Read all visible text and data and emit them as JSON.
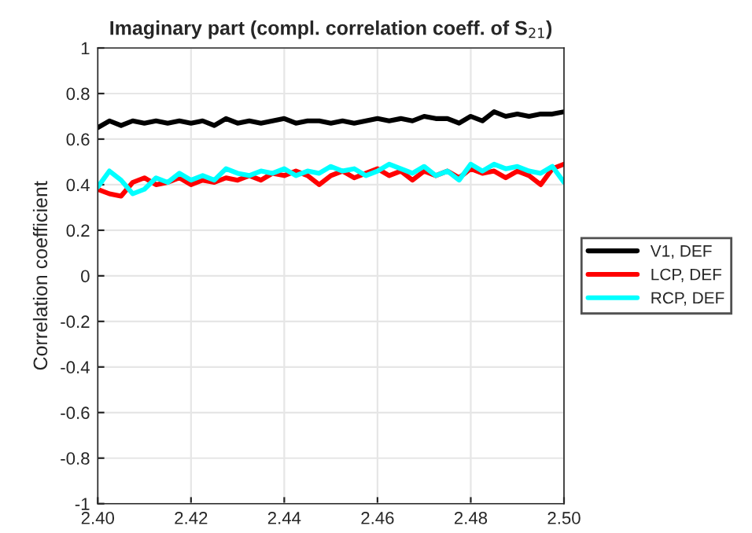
{
  "chart_data": {
    "type": "line",
    "title": "Imaginary part (compl. correlation coeff. of S$_{21}$)",
    "ylabel": "Correlation coefficient",
    "x": [
      2.4,
      2.4025,
      2.405,
      2.4075,
      2.41,
      2.4125,
      2.415,
      2.4175,
      2.42,
      2.4225,
      2.425,
      2.4275,
      2.43,
      2.4325,
      2.435,
      2.4375,
      2.44,
      2.4425,
      2.445,
      2.4475,
      2.45,
      2.4525,
      2.455,
      2.4575,
      2.46,
      2.4625,
      2.465,
      2.4675,
      2.47,
      2.4725,
      2.475,
      2.4775,
      2.48,
      2.4825,
      2.485,
      2.4875,
      2.49,
      2.4925,
      2.495,
      2.4975,
      2.5
    ],
    "series": [
      {
        "name": "V1, DEF",
        "color": "#000000",
        "values": [
          0.65,
          0.68,
          0.66,
          0.68,
          0.67,
          0.68,
          0.67,
          0.68,
          0.67,
          0.68,
          0.66,
          0.69,
          0.67,
          0.68,
          0.67,
          0.68,
          0.69,
          0.67,
          0.68,
          0.68,
          0.67,
          0.68,
          0.67,
          0.68,
          0.69,
          0.68,
          0.69,
          0.68,
          0.7,
          0.69,
          0.69,
          0.67,
          0.7,
          0.68,
          0.72,
          0.7,
          0.71,
          0.7,
          0.71,
          0.71,
          0.72
        ]
      },
      {
        "name": "LCP, DEF",
        "color": "#ff0000",
        "values": [
          0.38,
          0.36,
          0.35,
          0.41,
          0.43,
          0.4,
          0.41,
          0.43,
          0.4,
          0.42,
          0.41,
          0.43,
          0.42,
          0.44,
          0.42,
          0.45,
          0.44,
          0.46,
          0.44,
          0.4,
          0.44,
          0.46,
          0.43,
          0.45,
          0.47,
          0.44,
          0.46,
          0.42,
          0.46,
          0.44,
          0.46,
          0.43,
          0.47,
          0.45,
          0.46,
          0.43,
          0.46,
          0.44,
          0.4,
          0.47,
          0.49
        ]
      },
      {
        "name": "RCP, DEF",
        "color": "#00ffff",
        "values": [
          0.39,
          0.46,
          0.42,
          0.36,
          0.38,
          0.43,
          0.41,
          0.45,
          0.42,
          0.44,
          0.42,
          0.47,
          0.45,
          0.44,
          0.46,
          0.45,
          0.47,
          0.44,
          0.46,
          0.45,
          0.48,
          0.46,
          0.47,
          0.44,
          0.46,
          0.49,
          0.47,
          0.45,
          0.48,
          0.44,
          0.46,
          0.42,
          0.49,
          0.46,
          0.49,
          0.47,
          0.48,
          0.46,
          0.45,
          0.48,
          0.41
        ]
      }
    ],
    "xlim": [
      2.4,
      2.5
    ],
    "xticks": [
      {
        "value": 2.4,
        "label": "2.40"
      },
      2.42,
      2.44,
      2.46,
      2.48,
      {
        "value": 2.5,
        "label": "2.50"
      }
    ],
    "ylim": [
      -1,
      1
    ],
    "yticks": [
      -1,
      -0.8,
      -0.6,
      -0.4,
      -0.2,
      0,
      0.2,
      0.4,
      0.6,
      0.8,
      1
    ],
    "grid": true,
    "legend": "right",
    "line_style": "solid"
  }
}
